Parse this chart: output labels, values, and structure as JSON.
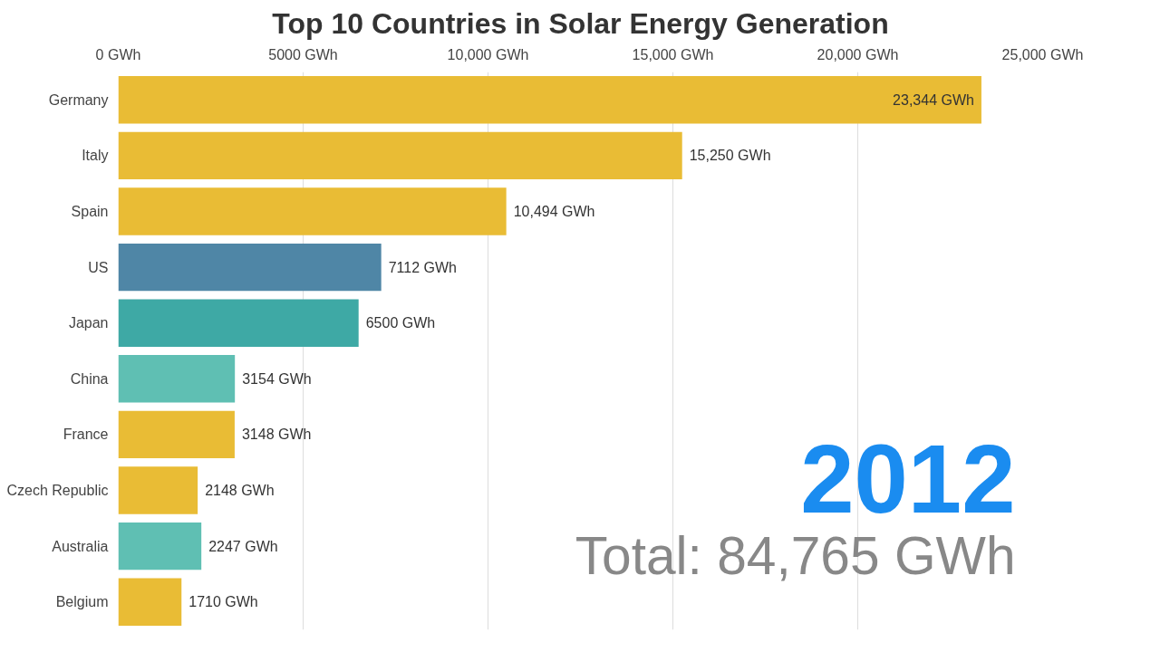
{
  "chart_data": {
    "type": "bar",
    "orientation": "horizontal",
    "title": "Top 10 Countries in Solar Energy Generation",
    "categories": [
      "Germany",
      "Italy",
      "Spain",
      "US",
      "Japan",
      "China",
      "France",
      "Czech Republic",
      "Australia",
      "Belgium"
    ],
    "values": [
      23344,
      15250,
      10494,
      7112,
      6500,
      3154,
      3148,
      2148,
      2247,
      1710
    ],
    "value_labels": [
      "23,344 GWh",
      "15,250 GWh",
      "10,494 GWh",
      "7112 GWh",
      "6500 GWh",
      "3154 GWh",
      "3148 GWh",
      "2148 GWh",
      "2247 GWh",
      "1710 GWh"
    ],
    "colors": [
      "#e9bc35",
      "#e9bc35",
      "#e9bc35",
      "#4f86a6",
      "#3ea9a5",
      "#5fbfb3",
      "#e9bc35",
      "#e9bc35",
      "#5fbfb3",
      "#e9bc35"
    ],
    "xlim": [
      0,
      25000
    ],
    "xticks": [
      {
        "value": 0,
        "label": "0 GWh"
      },
      {
        "value": 5000,
        "label": "5000 GWh"
      },
      {
        "value": 10000,
        "label": "10,000 GWh"
      },
      {
        "value": 15000,
        "label": "15,000 GWh"
      },
      {
        "value": 20000,
        "label": "20,000 GWh"
      },
      {
        "value": 25000,
        "label": "25,000 GWh"
      }
    ],
    "grid": "x",
    "annotations": [
      "2012",
      "Total: 84,765 GWh"
    ]
  }
}
